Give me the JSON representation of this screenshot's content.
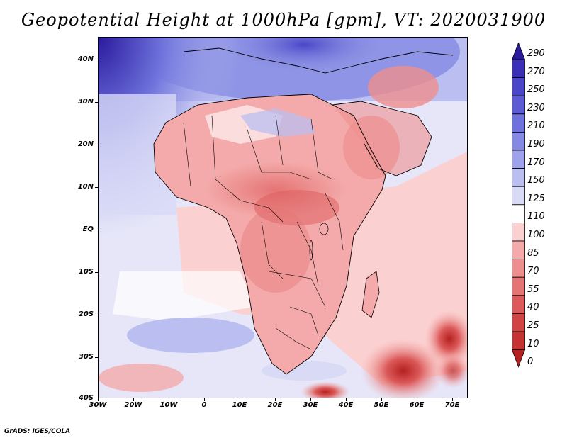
{
  "title": "Geopotential Height at 1000hPa [gpm], VT: 2020031900",
  "credit": "GrADS: IGES/COLA",
  "map": {
    "projection": "lat-lon",
    "lon_range": [
      -30,
      75
    ],
    "lat_range": [
      -40,
      45
    ],
    "y_ticks": [
      "40N",
      "30N",
      "20N",
      "10N",
      "EQ",
      "10S",
      "20S",
      "30S",
      "40S"
    ],
    "x_ticks": [
      "30W",
      "20W",
      "10W",
      "0",
      "10E",
      "20E",
      "30E",
      "40E",
      "50E",
      "60E",
      "70E"
    ]
  },
  "colorbar": {
    "labels": [
      "290",
      "270",
      "250",
      "230",
      "210",
      "190",
      "170",
      "150",
      "125",
      "110",
      "100",
      "85",
      "70",
      "55",
      "40",
      "25",
      "10",
      "0"
    ],
    "colors": [
      "#2b1a9e",
      "#3b2fb8",
      "#4a46c8",
      "#5b5bd4",
      "#6e72dc",
      "#8489e4",
      "#9ea2ea",
      "#bbbef0",
      "#d8daf6",
      "#ffffff",
      "#fbd0d0",
      "#f4aaaa",
      "#ee8f8f",
      "#e57474",
      "#dc5a5a",
      "#d14444",
      "#c43232",
      "#b52020"
    ]
  }
}
